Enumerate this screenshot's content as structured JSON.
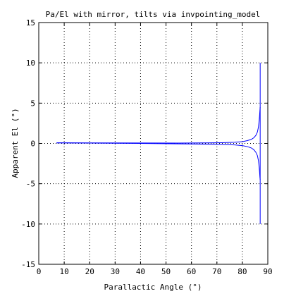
{
  "chart_data": {
    "type": "line",
    "title": "Pa/El with mirror, tilts via invpointing_model",
    "xlabel": "Parallactic Angle (°)",
    "ylabel": "Apparent El (°)",
    "xlim": [
      0,
      90
    ],
    "ylim": [
      -15,
      15
    ],
    "xticks": [
      0,
      10,
      20,
      30,
      40,
      50,
      60,
      70,
      80,
      90
    ],
    "yticks": [
      -15,
      -10,
      -5,
      0,
      5,
      10,
      15
    ],
    "xtick_labels": [
      "0",
      "10",
      "20",
      "30",
      "40",
      "50",
      "60",
      "70",
      "80",
      "90"
    ],
    "ytick_labels": [
      "-15",
      "-10",
      "-5",
      "0",
      "5",
      "10",
      "15"
    ],
    "grid": true,
    "line_color": "#0000ff",
    "series": [
      {
        "x": [
          7,
          20,
          40,
          55,
          65,
          72,
          77,
          80,
          82,
          83.5,
          84.5,
          85.3,
          85.9,
          86.3,
          86.6,
          86.8,
          86.9,
          87.0
        ],
        "y": [
          0.08,
          0.06,
          0.05,
          0.04,
          0.06,
          0.09,
          0.14,
          0.22,
          0.35,
          0.5,
          0.7,
          1.0,
          1.4,
          2.0,
          2.8,
          3.6,
          4.1,
          4.5
        ]
      },
      {
        "x": [
          7,
          20,
          40,
          55,
          65,
          72,
          77,
          80,
          82,
          83.5,
          84.5,
          85.3,
          85.9,
          86.3,
          86.6,
          86.8,
          86.9,
          87.0
        ],
        "y": [
          0.06,
          0.04,
          0.0,
          -0.05,
          -0.09,
          -0.13,
          -0.19,
          -0.27,
          -0.4,
          -0.56,
          -0.78,
          -1.1,
          -1.5,
          -2.1,
          -2.9,
          -3.7,
          -4.2,
          -4.5
        ]
      },
      {
        "x": [
          87.0,
          87.0
        ],
        "y": [
          -10,
          10
        ]
      }
    ]
  }
}
